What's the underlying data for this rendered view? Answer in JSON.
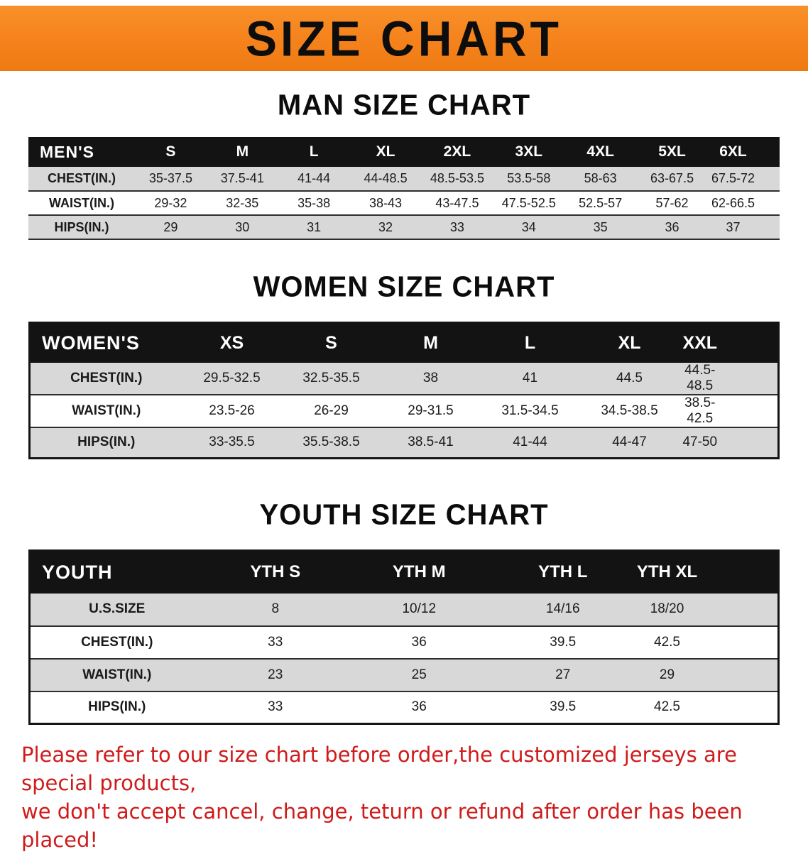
{
  "banner": {
    "title": "SIZE CHART"
  },
  "colors": {
    "banner_bg": "#f6841e",
    "table_header_bg": "#131313",
    "table_header_text": "#ffffff",
    "row_alt_bg": "#d8d8d8",
    "disclaimer_red": "#cf1b1b"
  },
  "sections": {
    "men": {
      "heading": "MAN SIZE CHART",
      "table": {
        "header": [
          "MEN'S",
          "S",
          "M",
          "L",
          "XL",
          "2XL",
          "3XL",
          "4XL",
          "5XL",
          "6XL"
        ],
        "rows": [
          [
            "CHEST(IN.)",
            "35-37.5",
            "37.5-41",
            "41-44",
            "44-48.5",
            "48.5-53.5",
            "53.5-58",
            "58-63",
            "63-67.5",
            "67.5-72"
          ],
          [
            "WAIST(IN.)",
            "29-32",
            "32-35",
            "35-38",
            "38-43",
            "43-47.5",
            "47.5-52.5",
            "52.5-57",
            "57-62",
            "62-66.5"
          ],
          [
            "HIPS(IN.)",
            "29",
            "30",
            "31",
            "32",
            "33",
            "34",
            "35",
            "36",
            "37"
          ]
        ]
      }
    },
    "women": {
      "heading": "WOMEN SIZE CHART",
      "table": {
        "header": [
          "WOMEN'S",
          "XS",
          "S",
          "M",
          "L",
          "XL",
          "XXL"
        ],
        "rows": [
          [
            "CHEST(IN.)",
            "29.5-32.5",
            "32.5-35.5",
            "38",
            "41",
            "44.5",
            "44.5-48.5"
          ],
          [
            "WAIST(IN.)",
            "23.5-26",
            "26-29",
            "29-31.5",
            "31.5-34.5",
            "34.5-38.5",
            "38.5-42.5"
          ],
          [
            "HIPS(IN.)",
            "33-35.5",
            "35.5-38.5",
            "38.5-41",
            "41-44",
            "44-47",
            "47-50"
          ]
        ]
      }
    },
    "youth": {
      "heading": "YOUTH SIZE CHART",
      "table": {
        "header": [
          "YOUTH",
          "YTH S",
          "YTH M",
          "YTH L",
          "YTH XL"
        ],
        "rows": [
          [
            "U.S.SIZE",
            "8",
            "10/12",
            "14/16",
            "18/20"
          ],
          [
            "CHEST(IN.)",
            "33",
            "36",
            "39.5",
            "42.5"
          ],
          [
            "WAIST(IN.)",
            "23",
            "25",
            "27",
            "29"
          ],
          [
            "HIPS(IN.)",
            "33",
            "36",
            "39.5",
            "42.5"
          ]
        ]
      }
    }
  },
  "disclaimer": {
    "line1": "Please refer to our size chart before order,the customized jerseys are special products,",
    "line2": "we don't accept cancel, change, teturn or refund after order has been placed!"
  }
}
